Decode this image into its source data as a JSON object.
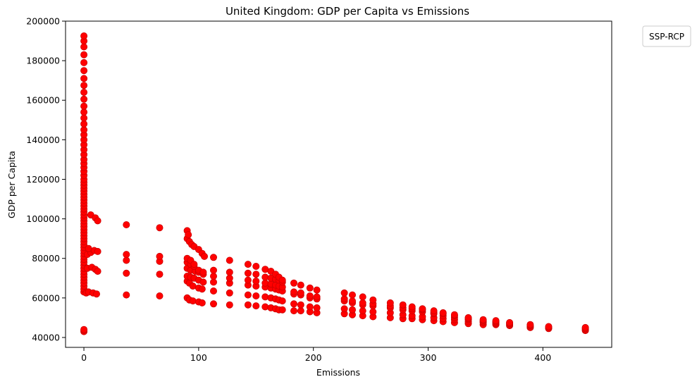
{
  "chart_data": {
    "type": "scatter",
    "title": "United Kingdom: GDP per Capita vs Emissions",
    "xlabel": "Emissions",
    "ylabel": "GDP per Capita",
    "xlim": [
      -16,
      460
    ],
    "ylim": [
      35000,
      200000
    ],
    "xticks": [
      0,
      100,
      200,
      300,
      400
    ],
    "yticks": [
      40000,
      60000,
      80000,
      100000,
      120000,
      140000,
      160000,
      180000,
      200000
    ],
    "xtick_labels": [
      "0",
      "100",
      "200",
      "300",
      "400"
    ],
    "ytick_labels": [
      "40000",
      "60000",
      "80000",
      "100000",
      "120000",
      "140000",
      "160000",
      "180000",
      "200000"
    ],
    "grid": false,
    "legend": {
      "title": "SSP-RCP",
      "placement": "outside-top-right",
      "entries": []
    },
    "color": "#ff0000",
    "edge_color": "#cc0000",
    "points": [
      [
        0,
        43000
      ],
      [
        0,
        43500
      ],
      [
        0,
        44000
      ],
      [
        0,
        63000
      ],
      [
        0,
        64500
      ],
      [
        0,
        66000
      ],
      [
        0,
        67500
      ],
      [
        0,
        69000
      ],
      [
        0,
        70500
      ],
      [
        0,
        72000
      ],
      [
        0,
        73500
      ],
      [
        0,
        75000
      ],
      [
        0,
        76500
      ],
      [
        0,
        78000
      ],
      [
        0,
        79500
      ],
      [
        0,
        81000
      ],
      [
        0,
        82500
      ],
      [
        0,
        84000
      ],
      [
        0,
        85500
      ],
      [
        0,
        87000
      ],
      [
        0,
        88500
      ],
      [
        0,
        90000
      ],
      [
        0,
        91500
      ],
      [
        0,
        93000
      ],
      [
        0,
        94500
      ],
      [
        0,
        96000
      ],
      [
        0,
        97500
      ],
      [
        0,
        99000
      ],
      [
        0,
        100500
      ],
      [
        0,
        102000
      ],
      [
        0,
        103500
      ],
      [
        0,
        105000
      ],
      [
        0,
        106500
      ],
      [
        0,
        108000
      ],
      [
        0,
        109500
      ],
      [
        0,
        111000
      ],
      [
        0,
        112500
      ],
      [
        0,
        114000
      ],
      [
        0,
        115500
      ],
      [
        0,
        117000
      ],
      [
        0,
        118500
      ],
      [
        0,
        120000
      ],
      [
        0,
        122000
      ],
      [
        0,
        124000
      ],
      [
        0,
        126000
      ],
      [
        0,
        128000
      ],
      [
        0,
        130000
      ],
      [
        0,
        132500
      ],
      [
        0,
        135000
      ],
      [
        0,
        137500
      ],
      [
        0,
        140000
      ],
      [
        0,
        142500
      ],
      [
        0,
        145000
      ],
      [
        0,
        148000
      ],
      [
        0,
        151000
      ],
      [
        0,
        154000
      ],
      [
        0,
        157000
      ],
      [
        0,
        160500
      ],
      [
        0,
        164000
      ],
      [
        0,
        167500
      ],
      [
        0,
        171000
      ],
      [
        0,
        175000
      ],
      [
        0,
        179000
      ],
      [
        0,
        183000
      ],
      [
        0,
        187000
      ],
      [
        0,
        190000
      ],
      [
        0,
        192500
      ],
      [
        2,
        62500
      ],
      [
        4,
        63000
      ],
      [
        8,
        62500
      ],
      [
        11,
        62000
      ],
      [
        3,
        75000
      ],
      [
        7,
        75500
      ],
      [
        10,
        74500
      ],
      [
        12,
        73500
      ],
      [
        3,
        82000
      ],
      [
        6,
        83000
      ],
      [
        9,
        84000
      ],
      [
        12,
        83500
      ],
      [
        4,
        85000
      ],
      [
        6,
        102000
      ],
      [
        10,
        100500
      ],
      [
        12,
        99000
      ],
      [
        37,
        61500
      ],
      [
        37,
        72500
      ],
      [
        37,
        79000
      ],
      [
        37,
        82000
      ],
      [
        37,
        97000
      ],
      [
        66,
        61000
      ],
      [
        66,
        72000
      ],
      [
        66,
        78500
      ],
      [
        66,
        81000
      ],
      [
        66,
        95500
      ],
      [
        90,
        60000
      ],
      [
        92,
        59000
      ],
      [
        95,
        58500
      ],
      [
        100,
        58000
      ],
      [
        103,
        57500
      ],
      [
        90,
        68500
      ],
      [
        92,
        67500
      ],
      [
        95,
        66000
      ],
      [
        100,
        65000
      ],
      [
        103,
        64500
      ],
      [
        90,
        71000
      ],
      [
        93,
        70500
      ],
      [
        96,
        70000
      ],
      [
        100,
        69000
      ],
      [
        104,
        68000
      ],
      [
        90,
        75000
      ],
      [
        93,
        74000
      ],
      [
        97,
        73500
      ],
      [
        100,
        73000
      ],
      [
        104,
        72000
      ],
      [
        90,
        78000
      ],
      [
        93,
        77000
      ],
      [
        96,
        76000
      ],
      [
        100,
        74000
      ],
      [
        104,
        73000
      ],
      [
        90,
        80000
      ],
      [
        93,
        79000
      ],
      [
        96,
        77000
      ],
      [
        90,
        90000
      ],
      [
        92,
        88500
      ],
      [
        94,
        87000
      ],
      [
        96,
        86000
      ],
      [
        100,
        84500
      ],
      [
        103,
        82500
      ],
      [
        105,
        81000
      ],
      [
        90,
        94000
      ],
      [
        91,
        92000
      ],
      [
        113,
        57000
      ],
      [
        113,
        63500
      ],
      [
        113,
        68000
      ],
      [
        113,
        71000
      ],
      [
        113,
        74000
      ],
      [
        113,
        80500
      ],
      [
        127,
        56500
      ],
      [
        127,
        62500
      ],
      [
        127,
        67500
      ],
      [
        127,
        70000
      ],
      [
        127,
        73000
      ],
      [
        127,
        79000
      ],
      [
        143,
        56500
      ],
      [
        143,
        61500
      ],
      [
        143,
        66500
      ],
      [
        143,
        69000
      ],
      [
        143,
        72500
      ],
      [
        143,
        77000
      ],
      [
        150,
        56000
      ],
      [
        150,
        61000
      ],
      [
        150,
        66000
      ],
      [
        150,
        68500
      ],
      [
        150,
        72000
      ],
      [
        150,
        76000
      ],
      [
        158,
        55500
      ],
      [
        158,
        60500
      ],
      [
        158,
        65500
      ],
      [
        158,
        67500
      ],
      [
        158,
        70500
      ],
      [
        158,
        74500
      ],
      [
        163,
        55000
      ],
      [
        163,
        60000
      ],
      [
        163,
        65000
      ],
      [
        163,
        67000
      ],
      [
        163,
        70000
      ],
      [
        163,
        73500
      ],
      [
        167,
        54500
      ],
      [
        167,
        59500
      ],
      [
        167,
        64500
      ],
      [
        167,
        66500
      ],
      [
        167,
        69500
      ],
      [
        167,
        72000
      ],
      [
        170,
        54000
      ],
      [
        170,
        59000
      ],
      [
        170,
        64000
      ],
      [
        170,
        66000
      ],
      [
        170,
        69000
      ],
      [
        170,
        70500
      ],
      [
        173,
        54000
      ],
      [
        173,
        58500
      ],
      [
        173,
        63500
      ],
      [
        173,
        65500
      ],
      [
        173,
        68000
      ],
      [
        173,
        69000
      ],
      [
        183,
        53500
      ],
      [
        183,
        57000
      ],
      [
        183,
        62000
      ],
      [
        183,
        63000
      ],
      [
        183,
        67500
      ],
      [
        189,
        53500
      ],
      [
        189,
        56500
      ],
      [
        189,
        61500
      ],
      [
        189,
        62500
      ],
      [
        189,
        66500
      ],
      [
        197,
        53000
      ],
      [
        197,
        55500
      ],
      [
        197,
        60000
      ],
      [
        197,
        61000
      ],
      [
        197,
        65000
      ],
      [
        203,
        52500
      ],
      [
        203,
        55000
      ],
      [
        203,
        59500
      ],
      [
        203,
        60500
      ],
      [
        203,
        64000
      ],
      [
        227,
        52000
      ],
      [
        227,
        54500
      ],
      [
        227,
        58500
      ],
      [
        227,
        59500
      ],
      [
        227,
        62500
      ],
      [
        234,
        51500
      ],
      [
        234,
        54000
      ],
      [
        234,
        57500
      ],
      [
        234,
        58500
      ],
      [
        234,
        61500
      ],
      [
        243,
        51000
      ],
      [
        243,
        53500
      ],
      [
        243,
        56500
      ],
      [
        243,
        57500
      ],
      [
        243,
        60500
      ],
      [
        252,
        50500
      ],
      [
        252,
        53000
      ],
      [
        252,
        56000
      ],
      [
        252,
        57000
      ],
      [
        252,
        59000
      ],
      [
        267,
        50000
      ],
      [
        267,
        52500
      ],
      [
        267,
        55000
      ],
      [
        267,
        56000
      ],
      [
        267,
        57500
      ],
      [
        278,
        49500
      ],
      [
        278,
        51500
      ],
      [
        278,
        54000
      ],
      [
        278,
        55000
      ],
      [
        278,
        56500
      ],
      [
        286,
        49500
      ],
      [
        286,
        51000
      ],
      [
        286,
        53500
      ],
      [
        286,
        54500
      ],
      [
        286,
        55500
      ],
      [
        295,
        49000
      ],
      [
        295,
        50500
      ],
      [
        295,
        53000
      ],
      [
        295,
        54000
      ],
      [
        295,
        54500
      ],
      [
        305,
        48500
      ],
      [
        305,
        50000
      ],
      [
        305,
        52000
      ],
      [
        305,
        52500
      ],
      [
        305,
        53500
      ],
      [
        313,
        48000
      ],
      [
        313,
        49500
      ],
      [
        313,
        51000
      ],
      [
        313,
        52000
      ],
      [
        313,
        52500
      ],
      [
        323,
        47500
      ],
      [
        323,
        49000
      ],
      [
        323,
        50000
      ],
      [
        323,
        51000
      ],
      [
        323,
        51500
      ],
      [
        335,
        47000
      ],
      [
        335,
        48000
      ],
      [
        335,
        49000
      ],
      [
        335,
        49500
      ],
      [
        335,
        50000
      ],
      [
        348,
        46500
      ],
      [
        348,
        47500
      ],
      [
        348,
        48000
      ],
      [
        348,
        48500
      ],
      [
        348,
        49000
      ],
      [
        359,
        46500
      ],
      [
        359,
        47000
      ],
      [
        359,
        47500
      ],
      [
        359,
        48000
      ],
      [
        359,
        48500
      ],
      [
        371,
        46000
      ],
      [
        371,
        46500
      ],
      [
        371,
        47000
      ],
      [
        371,
        47500
      ],
      [
        389,
        45000
      ],
      [
        389,
        45500
      ],
      [
        389,
        46000
      ],
      [
        389,
        46500
      ],
      [
        405,
        44500
      ],
      [
        405,
        45000
      ],
      [
        405,
        45500
      ],
      [
        437,
        43500
      ],
      [
        437,
        44000
      ],
      [
        437,
        44500
      ],
      [
        437,
        45000
      ]
    ]
  }
}
